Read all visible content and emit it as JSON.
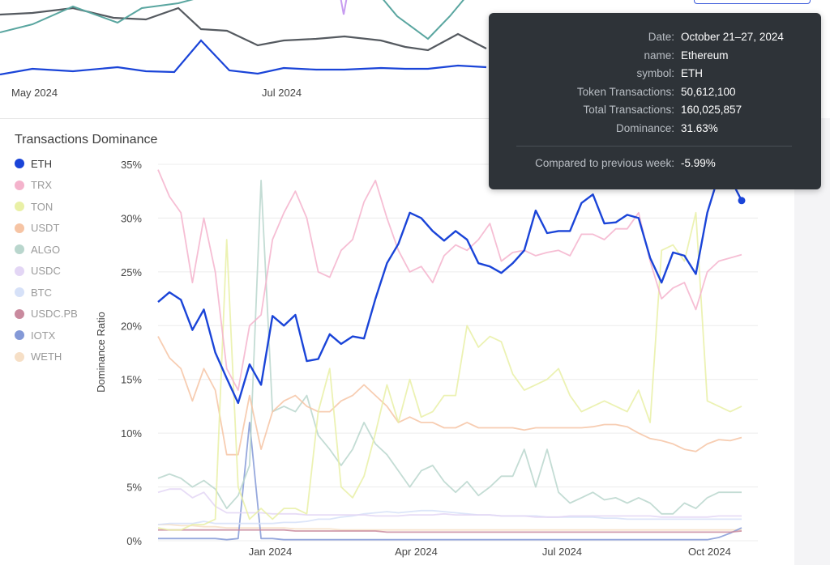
{
  "top_chart": {
    "x_ticks": [
      "May 2024",
      "Jul 2024"
    ]
  },
  "chart_data": {
    "type": "line",
    "title": "Transactions Dominance",
    "ylabel": "Dominance Ratio",
    "ylim": [
      0,
      35
    ],
    "y_ticks": [
      "0%",
      "5%",
      "10%",
      "15%",
      "20%",
      "25%",
      "30%",
      "35%"
    ],
    "x_ticks": [
      "Jan 2024",
      "Apr 2024",
      "Jul 2024",
      "Oct 2024"
    ],
    "x_start": "2023-10-23",
    "x_end": "2024-10-21",
    "grid": true,
    "legend_position": "left",
    "series": [
      {
        "name": "ETH",
        "color": "#1a44d8",
        "highlighted": true,
        "values": [
          22.2,
          23.1,
          22.4,
          19.6,
          21.5,
          17.5,
          15.1,
          12.8,
          16.4,
          14.5,
          20.9,
          20.0,
          21.0,
          16.7,
          16.9,
          19.2,
          18.3,
          19.0,
          18.8,
          22.5,
          25.8,
          27.6,
          30.5,
          30.0,
          28.8,
          27.9,
          28.8,
          28.0,
          25.8,
          25.5,
          24.9,
          25.8,
          27.0,
          30.7,
          28.6,
          28.8,
          28.8,
          31.4,
          32.2,
          29.5,
          29.6,
          30.3,
          30.0,
          26.3,
          24.0,
          26.8,
          26.5,
          24.8,
          30.5,
          34.0,
          33.7,
          31.63
        ]
      },
      {
        "name": "TRX",
        "color": "#f4b3cc",
        "values": [
          34.5,
          32.0,
          30.5,
          24.0,
          30.0,
          25.0,
          16.0,
          14.0,
          20.0,
          21.0,
          28.0,
          30.5,
          32.5,
          30.0,
          25.0,
          24.5,
          27.0,
          28.0,
          31.5,
          33.5,
          30.0,
          27.0,
          25.0,
          25.5,
          24.0,
          26.5,
          27.5,
          27.0,
          28.0,
          29.5,
          26.0,
          26.8,
          27.0,
          26.5,
          26.8,
          27.0,
          26.5,
          28.5,
          28.5,
          28.0,
          29.0,
          29.0,
          30.5,
          26.0,
          22.5,
          23.5,
          24.0,
          21.5,
          25.0,
          26.0,
          26.3,
          26.6
        ]
      },
      {
        "name": "TON",
        "color": "#e9f0a6",
        "values": [
          1.2,
          1.0,
          1.0,
          1.5,
          1.5,
          2.0,
          28.0,
          5.0,
          2.0,
          3.0,
          2.0,
          3.0,
          3.0,
          2.5,
          12.0,
          16.0,
          5.0,
          4.0,
          6.0,
          10.0,
          14.5,
          11.0,
          15.0,
          11.5,
          12.0,
          13.5,
          13.5,
          20.0,
          18.0,
          19.0,
          18.5,
          15.5,
          14.0,
          14.5,
          15.0,
          16.0,
          13.5,
          12.0,
          12.5,
          13.0,
          12.5,
          12.0,
          14.0,
          11.0,
          27.0,
          27.5,
          26.0,
          30.5,
          13.0,
          12.5,
          12.0,
          12.5
        ]
      },
      {
        "name": "USDT",
        "color": "#f6c4a4",
        "values": [
          19.0,
          17.0,
          16.0,
          13.0,
          16.0,
          14.0,
          8.0,
          8.0,
          13.5,
          8.5,
          12.0,
          13.0,
          13.5,
          12.5,
          12.0,
          12.0,
          13.0,
          13.5,
          14.5,
          13.5,
          12.5,
          11.0,
          11.5,
          11.0,
          11.0,
          10.5,
          10.5,
          11.0,
          10.5,
          10.5,
          10.5,
          10.5,
          10.3,
          10.5,
          10.5,
          10.5,
          10.5,
          10.5,
          10.6,
          10.8,
          10.8,
          10.6,
          10.0,
          9.5,
          9.3,
          9.0,
          8.5,
          8.3,
          9.0,
          9.4,
          9.3,
          9.6
        ]
      },
      {
        "name": "ALGO",
        "color": "#b9d6cd",
        "values": [
          5.8,
          6.2,
          5.8,
          5.0,
          5.6,
          4.8,
          3.0,
          4.2,
          7.0,
          33.5,
          12.0,
          12.5,
          12.0,
          13.5,
          9.8,
          8.5,
          7.0,
          8.5,
          11.0,
          9.0,
          8.0,
          6.5,
          5.0,
          6.5,
          7.0,
          5.5,
          4.5,
          5.5,
          4.2,
          5.0,
          6.0,
          6.0,
          8.5,
          5.0,
          8.5,
          4.5,
          3.5,
          4.0,
          4.5,
          3.8,
          4.0,
          3.5,
          4.0,
          3.5,
          2.5,
          2.5,
          3.5,
          3.0,
          4.0,
          4.5,
          4.5,
          4.5
        ]
      },
      {
        "name": "USDC",
        "color": "#e3d6f5",
        "values": [
          4.5,
          4.8,
          4.8,
          4.0,
          4.5,
          3.2,
          2.6,
          2.6,
          2.6,
          2.6,
          2.5,
          2.5,
          2.5,
          2.4,
          2.4,
          2.4,
          2.4,
          2.4,
          2.4,
          2.3,
          2.3,
          2.3,
          2.4,
          2.4,
          2.4,
          2.5,
          2.4,
          2.4,
          2.4,
          2.4,
          2.3,
          2.3,
          2.3,
          2.2,
          2.2,
          2.2,
          2.3,
          2.3,
          2.3,
          2.3,
          2.3,
          2.3,
          2.3,
          2.3,
          2.2,
          2.2,
          2.2,
          2.2,
          2.2,
          2.3,
          2.3,
          2.3
        ]
      },
      {
        "name": "BTC",
        "color": "#d6e1f8",
        "values": [
          1.5,
          1.6,
          1.6,
          1.6,
          1.8,
          1.6,
          1.6,
          1.6,
          1.6,
          1.6,
          1.6,
          1.7,
          1.7,
          1.8,
          2.0,
          2.0,
          2.2,
          2.3,
          2.5,
          2.6,
          2.7,
          2.6,
          2.7,
          2.8,
          2.8,
          2.7,
          2.6,
          2.5,
          2.4,
          2.4,
          2.3,
          2.3,
          2.3,
          2.3,
          2.2,
          2.2,
          2.2,
          2.2,
          2.2,
          2.1,
          2.1,
          2.0,
          2.0,
          2.0,
          2.0,
          2.0,
          2.0,
          2.0,
          2.0,
          2.0,
          2.0,
          2.0
        ]
      },
      {
        "name": "USDC.PB",
        "color": "#c98a9e",
        "values": [
          1.0,
          1.0,
          1.0,
          1.0,
          1.0,
          1.0,
          1.0,
          1.0,
          1.0,
          1.0,
          1.0,
          1.0,
          0.9,
          0.9,
          0.9,
          0.9,
          0.9,
          0.9,
          0.9,
          0.9,
          0.8,
          0.8,
          0.8,
          0.8,
          0.8,
          0.8,
          0.8,
          0.8,
          0.8,
          0.8,
          0.8,
          0.8,
          0.8,
          0.8,
          0.8,
          0.8,
          0.8,
          0.8,
          0.8,
          0.8,
          0.8,
          0.8,
          0.8,
          0.8,
          0.8,
          0.8,
          0.8,
          0.8,
          0.8,
          0.8,
          0.8,
          0.9
        ]
      },
      {
        "name": "IOTX",
        "color": "#8499d7",
        "values": [
          0.2,
          0.2,
          0.2,
          0.2,
          0.2,
          0.2,
          0.1,
          0.2,
          11.0,
          0.2,
          0.2,
          0.1,
          0.1,
          0.1,
          0.1,
          0.1,
          0.1,
          0.1,
          0.1,
          0.1,
          0.1,
          0.1,
          0.1,
          0.1,
          0.1,
          0.1,
          0.1,
          0.1,
          0.1,
          0.1,
          0.1,
          0.1,
          0.1,
          0.1,
          0.1,
          0.1,
          0.1,
          0.1,
          0.1,
          0.1,
          0.1,
          0.1,
          0.1,
          0.1,
          0.1,
          0.1,
          0.1,
          0.1,
          0.1,
          0.3,
          0.7,
          1.2
        ]
      },
      {
        "name": "WETH",
        "color": "#f6dfc6",
        "values": [
          1.5,
          1.5,
          1.4,
          1.4,
          1.3,
          1.3,
          1.2,
          1.2,
          1.2,
          1.2,
          1.2,
          1.2,
          1.1,
          1.1,
          1.1,
          1.1,
          1.0,
          1.0,
          1.0,
          1.0,
          1.0,
          1.0,
          1.0,
          1.0,
          1.0,
          1.0,
          1.0,
          1.0,
          1.0,
          1.0,
          1.0,
          1.0,
          1.0,
          1.0,
          1.0,
          1.0,
          1.0,
          1.0,
          1.0,
          1.0,
          1.0,
          1.0,
          1.0,
          1.0,
          1.0,
          1.0,
          1.0,
          1.0,
          1.0,
          1.0,
          1.0,
          1.0
        ]
      }
    ]
  },
  "tooltip": {
    "rows": [
      {
        "key": "Date:",
        "value": "October 21–27, 2024"
      },
      {
        "key": "name:",
        "value": "Ethereum"
      },
      {
        "key": "symbol:",
        "value": "ETH"
      },
      {
        "key": "Token Transactions:",
        "value": "50,612,100"
      },
      {
        "key": "Total Transactions:",
        "value": "160,025,857"
      },
      {
        "key": "Dominance:",
        "value": "31.63%"
      }
    ],
    "compare_key": "Compared to previous week:",
    "compare_value": "-5.99%"
  }
}
